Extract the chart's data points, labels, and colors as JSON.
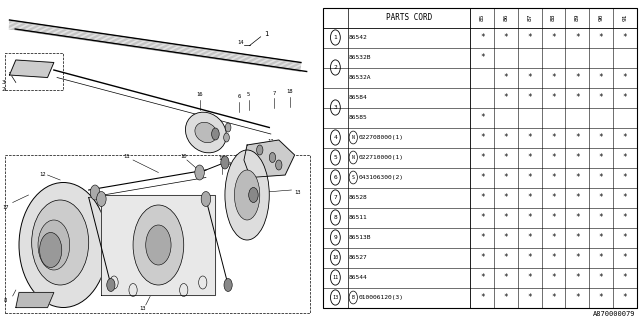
{
  "diagram_label": "A870000079",
  "bg_color": "#ffffff",
  "table_header": "PARTS CORD",
  "col_headers": [
    "85",
    "86",
    "87",
    "88",
    "89",
    "90",
    "91"
  ],
  "rows": [
    {
      "num": "1",
      "prefix": "",
      "code": "86542",
      "suffix": "",
      "stars": [
        1,
        1,
        1,
        1,
        1,
        1,
        1
      ]
    },
    {
      "num": "2",
      "prefix": "",
      "code": "86532B",
      "suffix": "",
      "stars": [
        1,
        0,
        0,
        0,
        0,
        0,
        0
      ]
    },
    {
      "num": "2",
      "prefix": "",
      "code": "86532A",
      "suffix": "",
      "stars": [
        0,
        1,
        1,
        1,
        1,
        1,
        1
      ]
    },
    {
      "num": "3",
      "prefix": "",
      "code": "86584",
      "suffix": "",
      "stars": [
        0,
        1,
        1,
        1,
        1,
        1,
        1
      ]
    },
    {
      "num": "3",
      "prefix": "",
      "code": "86585",
      "suffix": "",
      "stars": [
        1,
        0,
        0,
        0,
        0,
        0,
        0
      ]
    },
    {
      "num": "4",
      "prefix": "N",
      "code": "022708000(1)",
      "suffix": "",
      "stars": [
        1,
        1,
        1,
        1,
        1,
        1,
        1
      ]
    },
    {
      "num": "5",
      "prefix": "N",
      "code": "022710000(1)",
      "suffix": "",
      "stars": [
        1,
        1,
        1,
        1,
        1,
        1,
        1
      ]
    },
    {
      "num": "6",
      "prefix": "S",
      "code": "043106300(2)",
      "suffix": "",
      "stars": [
        1,
        1,
        1,
        1,
        1,
        1,
        1
      ]
    },
    {
      "num": "7",
      "prefix": "",
      "code": "86528",
      "suffix": "",
      "stars": [
        1,
        1,
        1,
        1,
        1,
        1,
        1
      ]
    },
    {
      "num": "8",
      "prefix": "",
      "code": "86511",
      "suffix": "",
      "stars": [
        1,
        1,
        1,
        1,
        1,
        1,
        1
      ]
    },
    {
      "num": "9",
      "prefix": "",
      "code": "86513B",
      "suffix": "",
      "stars": [
        1,
        1,
        1,
        1,
        1,
        1,
        1
      ]
    },
    {
      "num": "10",
      "prefix": "",
      "code": "86527",
      "suffix": "",
      "stars": [
        1,
        1,
        1,
        1,
        1,
        1,
        1
      ]
    },
    {
      "num": "11",
      "prefix": "",
      "code": "86544",
      "suffix": "",
      "stars": [
        1,
        1,
        1,
        1,
        1,
        1,
        1
      ]
    },
    {
      "num": "13",
      "prefix": "B",
      "code": "010006120(3)",
      "suffix": "",
      "stars": [
        1,
        1,
        1,
        1,
        1,
        1,
        1
      ]
    }
  ],
  "line_color": "#000000",
  "gray": "#aaaaaa",
  "dk_gray": "#555555"
}
